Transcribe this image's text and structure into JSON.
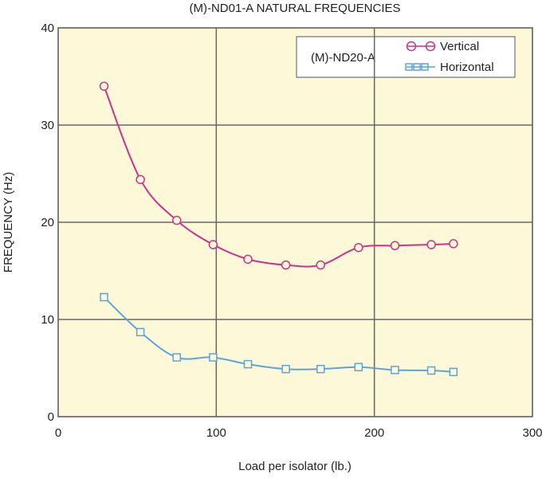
{
  "chart_data": {
    "type": "line",
    "title": "(M)-ND01-A NATURAL FREQUENCIES",
    "xlabel": "Load per isolator (lb.)",
    "ylabel": "FREQUENCY (Hz)",
    "xlim": [
      0,
      300
    ],
    "ylim": [
      0,
      40
    ],
    "xticks": [
      0,
      100,
      200,
      300
    ],
    "yticks": [
      0,
      10,
      20,
      30,
      40
    ],
    "grid": true,
    "legend_title": "(M)-ND20-A",
    "legend_position": "top-right",
    "background": "#fcf8d8",
    "series": [
      {
        "name": "Vertical",
        "color": "#cc3388",
        "marker": "circle",
        "x": [
          29,
          52,
          75,
          98,
          120,
          144,
          166,
          190,
          213,
          236,
          250
        ],
        "y": [
          34.0,
          24.4,
          20.2,
          17.7,
          16.2,
          15.6,
          15.6,
          17.4,
          17.6,
          17.7,
          17.8
        ]
      },
      {
        "name": "Horizontal",
        "color": "#5fa3dc",
        "marker": "square",
        "x": [
          29,
          52,
          75,
          98,
          120,
          144,
          166,
          190,
          213,
          236,
          250
        ],
        "y": [
          12.3,
          8.7,
          6.1,
          6.1,
          5.4,
          4.9,
          4.9,
          5.1,
          4.8,
          4.75,
          4.6
        ]
      }
    ]
  }
}
